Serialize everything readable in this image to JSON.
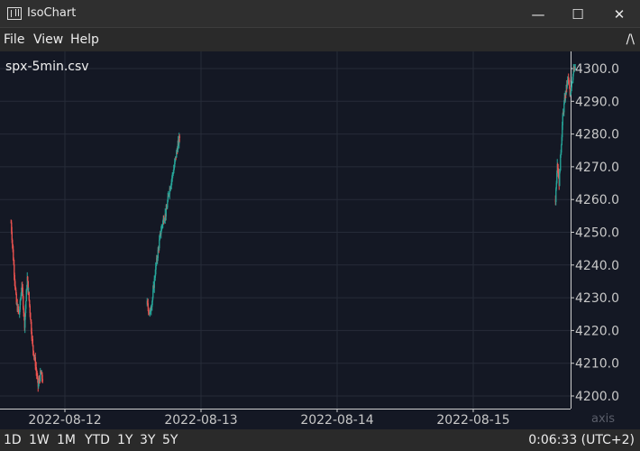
{
  "window": {
    "title": "IsoChart",
    "minimize_glyph": "—",
    "maximize_glyph": "☐",
    "close_glyph": "✕"
  },
  "menu": {
    "items": [
      "File",
      "View",
      "Help"
    ],
    "collapse_glyph": "/\\"
  },
  "chart": {
    "dataset_label": "spx-5min.csv",
    "axis_corner_label": "axis",
    "colors": {
      "background": "#141824",
      "grid": "#262b38",
      "up": "#26a69a",
      "down": "#ef5350",
      "axis_text": "#c8c8c8",
      "axis_line": "#cfcfcf"
    }
  },
  "chart_data": {
    "type": "candlestick",
    "y_ticks": [
      "4200.0",
      "4210.0",
      "4220.0",
      "4230.0",
      "4240.0",
      "4250.0",
      "4260.0",
      "4270.0",
      "4280.0",
      "4290.0",
      "4300.0"
    ],
    "ylim": [
      4196,
      4303
    ],
    "x_ticks": [
      "2022-08-12",
      "2022-08-13",
      "2022-08-14",
      "2022-08-15"
    ],
    "sessions": [
      {
        "start": "2022-08-11 14:30",
        "anchors": [
          [
            0,
            4253
          ],
          [
            3,
            4240
          ],
          [
            6,
            4228
          ],
          [
            9,
            4225
          ],
          [
            12,
            4234
          ],
          [
            15,
            4222
          ],
          [
            18,
            4236
          ],
          [
            21,
            4226
          ],
          [
            24,
            4215
          ],
          [
            27,
            4210
          ],
          [
            30,
            4203
          ],
          [
            33,
            4207
          ],
          [
            35,
            4205
          ]
        ]
      },
      {
        "start": "2022-08-12 14:30",
        "anchors": [
          [
            0,
            4228
          ],
          [
            3,
            4225
          ],
          [
            6,
            4230
          ],
          [
            9,
            4238
          ],
          [
            12,
            4244
          ],
          [
            15,
            4250
          ],
          [
            18,
            4254
          ],
          [
            21,
            4256
          ],
          [
            24,
            4262
          ],
          [
            27,
            4266
          ],
          [
            30,
            4270
          ],
          [
            33,
            4275
          ],
          [
            36,
            4279
          ]
        ]
      },
      {
        "start": "2022-08-15 14:30",
        "anchors": [
          [
            0,
            4260
          ],
          [
            2,
            4272
          ],
          [
            4,
            4265
          ],
          [
            6,
            4275
          ],
          [
            8,
            4285
          ],
          [
            10,
            4290
          ],
          [
            12,
            4294
          ],
          [
            14,
            4297
          ],
          [
            16,
            4292
          ],
          [
            18,
            4296
          ],
          [
            20,
            4299
          ],
          [
            22,
            4300
          ]
        ]
      }
    ]
  },
  "bottom": {
    "ranges": [
      "1D",
      "1W",
      "1M",
      "YTD",
      "1Y",
      "3Y",
      "5Y"
    ],
    "clock": "0:06:33 (UTC+2)"
  }
}
